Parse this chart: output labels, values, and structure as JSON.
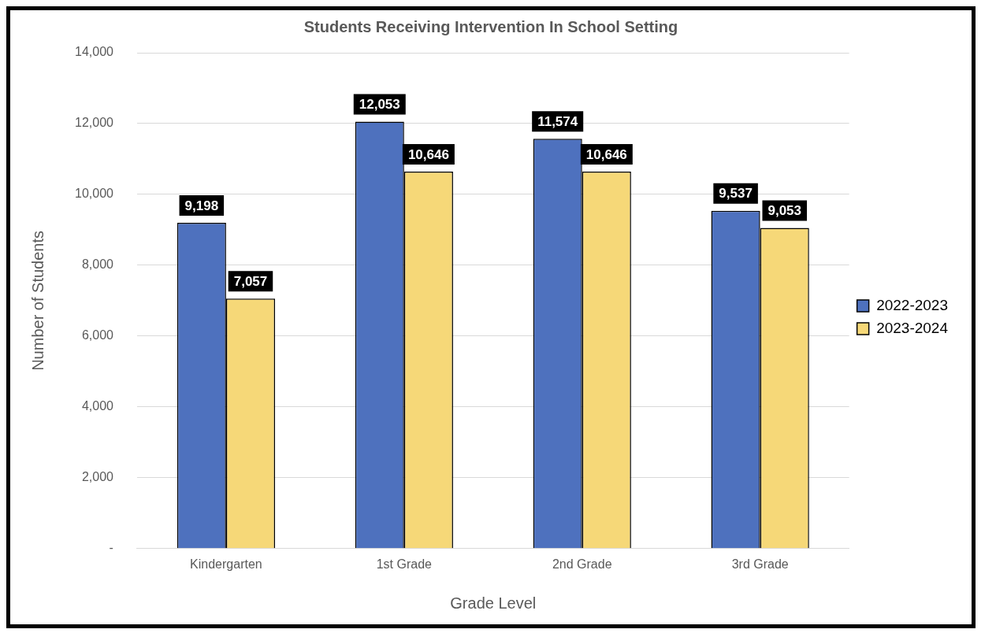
{
  "chart_data": {
    "type": "bar",
    "title": "Students Receiving Intervention In School Setting",
    "xlabel": "Grade Level",
    "ylabel": "Number of Students",
    "categories": [
      "Kindergarten",
      "1st Grade",
      "2nd Grade",
      "3rd Grade"
    ],
    "series": [
      {
        "name": "2022-2023",
        "color": "#4e71be",
        "values": [
          9198,
          12053,
          11574,
          9537
        ],
        "value_labels": [
          "9,198",
          "12,053",
          "11,574",
          "9,537"
        ]
      },
      {
        "name": "2023-2024",
        "color": "#f6d878",
        "values": [
          7057,
          10646,
          10646,
          9053
        ],
        "value_labels": [
          "7,057",
          "10,646",
          "10,646",
          "9,053"
        ]
      }
    ],
    "ylim": [
      0,
      14000
    ],
    "yticks": [
      {
        "value": 0,
        "label": "-"
      },
      {
        "value": 2000,
        "label": "2,000"
      },
      {
        "value": 4000,
        "label": "4,000"
      },
      {
        "value": 6000,
        "label": "6,000"
      },
      {
        "value": 8000,
        "label": "8,000"
      },
      {
        "value": 10000,
        "label": "10,000"
      },
      {
        "value": 12000,
        "label": "12,000"
      },
      {
        "value": 14000,
        "label": "14,000"
      }
    ],
    "grid": "y",
    "legend": "right"
  }
}
